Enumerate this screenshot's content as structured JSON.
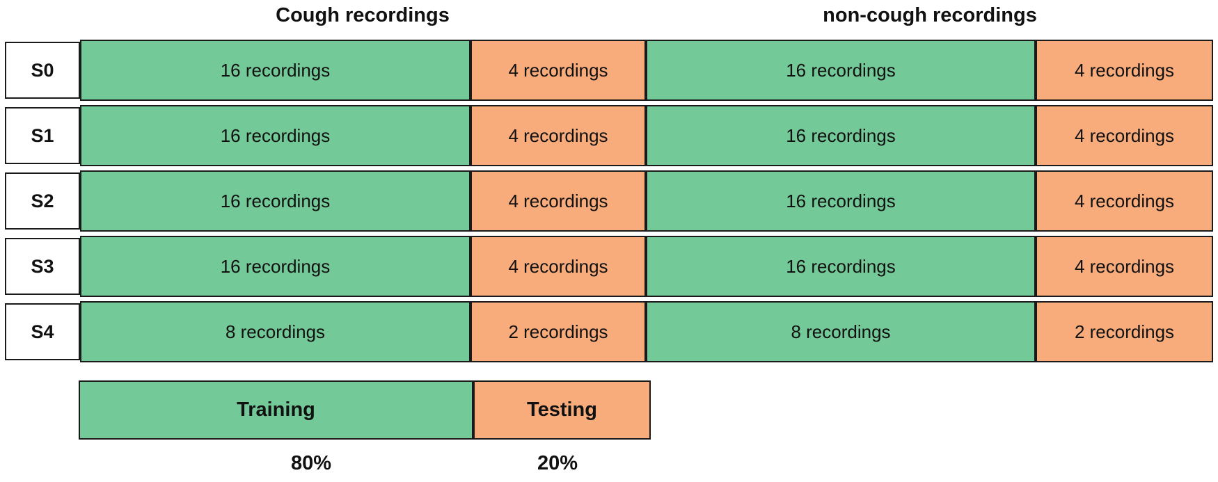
{
  "colors": {
    "training": "#74C998",
    "testing": "#F8AC7C",
    "border": "#1A1A1A"
  },
  "headers": {
    "cough": "Cough recordings",
    "noncough": "non-cough recordings"
  },
  "rows": [
    {
      "label": "S0",
      "cells": [
        "16 recordings",
        "4 recordings",
        "16 recordings",
        "4 recordings"
      ]
    },
    {
      "label": "S1",
      "cells": [
        "16 recordings",
        "4 recordings",
        "16 recordings",
        "4 recordings"
      ]
    },
    {
      "label": "S2",
      "cells": [
        "16 recordings",
        "4 recordings",
        "16 recordings",
        "4 recordings"
      ]
    },
    {
      "label": "S3",
      "cells": [
        "16 recordings",
        "4 recordings",
        "16 recordings",
        "4 recordings"
      ]
    },
    {
      "label": "S4",
      "cells": [
        "8 recordings",
        "2 recordings",
        "8 recordings",
        "2 recordings"
      ]
    }
  ],
  "legend": {
    "training": "Training",
    "testing": "Testing",
    "training_pct": "80%",
    "testing_pct": "20%"
  }
}
